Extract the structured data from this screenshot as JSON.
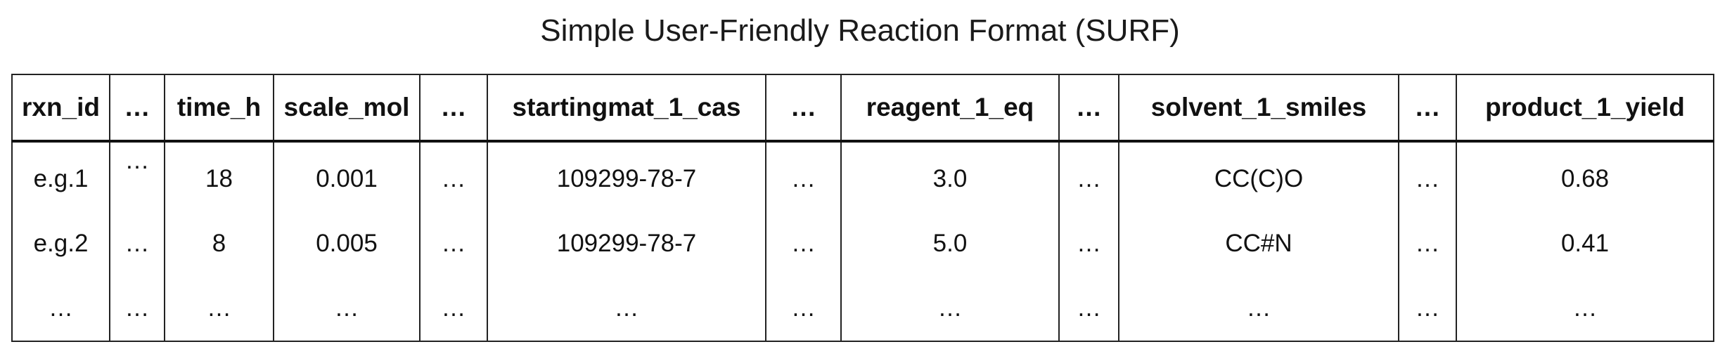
{
  "title": "Simple User-Friendly Reaction Format (SURF)",
  "table": {
    "headers": [
      "rxn_id",
      "…",
      "time_h",
      "scale_mol",
      "…",
      "startingmat_1_cas",
      "…",
      "reagent_1_eq",
      "…",
      "solvent_1_smiles",
      "…",
      "product_1_yield"
    ],
    "rows": [
      [
        "e.g.1",
        "…",
        "18",
        "0.001",
        "…",
        "109299-78-7",
        "…",
        "3.0",
        "…",
        "CC(C)O",
        "…",
        "0.68"
      ],
      [
        "e.g.2",
        "…",
        "8",
        "0.005",
        "…",
        "109299-78-7",
        "…",
        "5.0",
        "…",
        "CC#N",
        "…",
        "0.41"
      ],
      [
        "…",
        "…",
        "…",
        "…",
        "…",
        "…",
        "…",
        "…",
        "…",
        "…",
        "…",
        "…"
      ]
    ]
  }
}
